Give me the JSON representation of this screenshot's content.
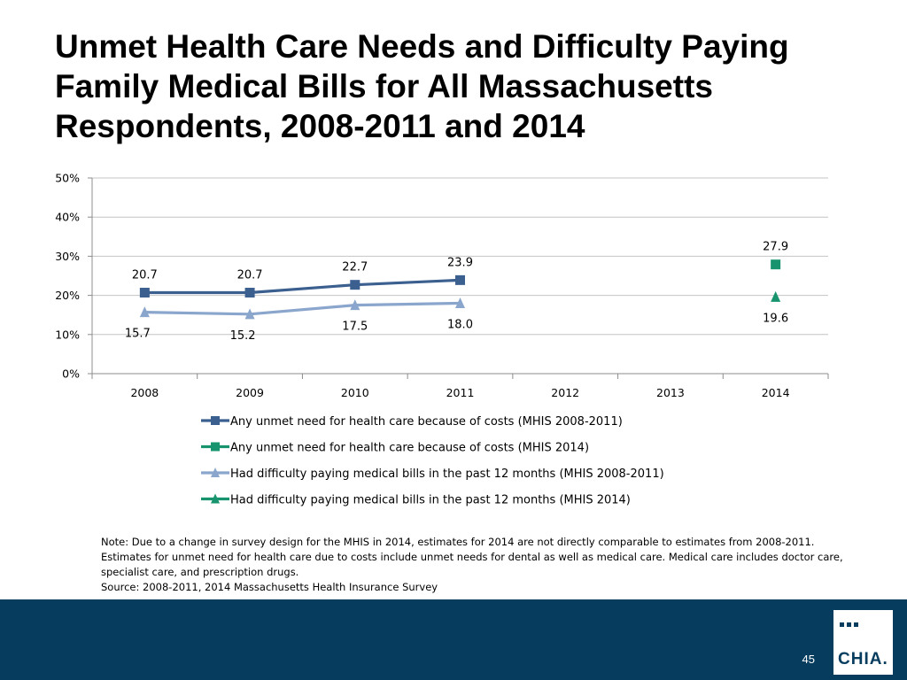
{
  "slide": {
    "title_lines": [
      "Unmet Health Care Needs and Difficulty Paying",
      "Family Medical Bills for All Massachusetts",
      "Respondents, 2008-2011 and 2014"
    ],
    "notes": [
      "Note: Due to a change in survey design for the MHIS in 2014, estimates for 2014 are not directly comparable to estimates from 2008-2011.",
      "Estimates for unmet need for health care due to costs include unmet needs for dental as well as medical care. Medical care includes doctor care,",
      "specialist care, and prescription drugs.",
      "Source:  2008-2011, 2014 Massachusetts Health Insurance Survey"
    ],
    "page_number": "45",
    "logo_text": "CHIA."
  },
  "chart_data": {
    "type": "line",
    "categories": [
      "2008",
      "2009",
      "2010",
      "2011",
      "2012",
      "2013",
      "2014"
    ],
    "ylim": [
      0,
      50
    ],
    "yticks": [
      0,
      10,
      20,
      30,
      40,
      50
    ],
    "ytick_labels": [
      "0%",
      "10%",
      "20%",
      "30%",
      "40%",
      "50%"
    ],
    "grid": true,
    "legend_position": "bottom",
    "series": [
      {
        "name": "Any unmet need for health care because of costs (MHIS 2008-2011)",
        "marker": "square",
        "color": "#3b5f8f",
        "values": [
          20.7,
          20.7,
          22.7,
          23.9,
          null,
          null,
          null
        ],
        "labels": [
          "20.7",
          "20.7",
          "22.7",
          "23.9",
          null,
          null,
          null
        ],
        "label_position": "above"
      },
      {
        "name": "Any unmet need for health care because of costs (MHIS 2014)",
        "marker": "square",
        "color": "#17946e",
        "values": [
          null,
          null,
          null,
          null,
          null,
          null,
          27.9
        ],
        "labels": [
          null,
          null,
          null,
          null,
          null,
          null,
          "27.9"
        ],
        "label_position": "above"
      },
      {
        "name": "Had difficulty paying medical bills in the past 12 months (MHIS 2008-2011)",
        "marker": "triangle",
        "color": "#8aa6cc",
        "values": [
          15.7,
          15.2,
          17.5,
          18.0,
          null,
          null,
          null
        ],
        "labels": [
          "15.7",
          "15.2",
          "17.5",
          "18.0",
          null,
          null,
          null
        ],
        "label_position": "below"
      },
      {
        "name": "Had difficulty paying medical bills in the past 12 months (MHIS 2014)",
        "marker": "triangle",
        "color": "#17946e",
        "values": [
          null,
          null,
          null,
          null,
          null,
          null,
          19.6
        ],
        "labels": [
          null,
          null,
          null,
          null,
          null,
          null,
          "19.6"
        ],
        "label_position": "below"
      }
    ]
  }
}
